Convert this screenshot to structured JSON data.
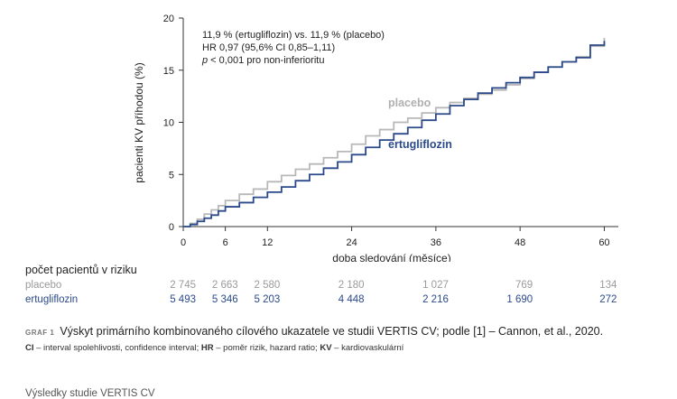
{
  "chart_data": {
    "type": "line",
    "xlabel": "doba sledování (měsíce)",
    "ylabel": "pacienti KV příhodou (%)",
    "xlim": [
      0,
      62
    ],
    "ylim": [
      0,
      20
    ],
    "xticks": [
      0,
      6,
      12,
      24,
      36,
      48,
      60
    ],
    "yticks": [
      0,
      5,
      10,
      15,
      20
    ],
    "annotations": {
      "line1": "11,9 % (ertugliflozin) vs. 11,9 % (placebo)",
      "line2": "HR 0,97 (95,6% CI 0,85–1,11)",
      "line3_italic": "p",
      "line3_rest": " < 0,001 pro non-inferioritu"
    },
    "series": [
      {
        "name": "placebo",
        "color": "#b8b8b8",
        "x": [
          0,
          1,
          2,
          3,
          4,
          5,
          6,
          8,
          10,
          12,
          14,
          16,
          18,
          20,
          22,
          24,
          26,
          28,
          30,
          32,
          34,
          36,
          38,
          40,
          42,
          44,
          46,
          48,
          50,
          52,
          54,
          56,
          58,
          60
        ],
        "y": [
          0,
          0.3,
          0.7,
          1.2,
          1.6,
          2.0,
          2.5,
          3.1,
          3.6,
          4.3,
          4.9,
          5.5,
          6.0,
          6.6,
          7.2,
          7.9,
          8.7,
          9.3,
          10.0,
          10.4,
          10.9,
          11.4,
          11.9,
          12.3,
          12.7,
          13.1,
          13.6,
          14.2,
          14.8,
          15.3,
          15.8,
          16.3,
          17.3,
          18.1
        ]
      },
      {
        "name": "ertugliflozin",
        "color": "#2b4a8b",
        "x": [
          0,
          1,
          2,
          3,
          4,
          5,
          6,
          8,
          10,
          12,
          14,
          16,
          18,
          20,
          22,
          24,
          26,
          28,
          30,
          32,
          34,
          36,
          38,
          40,
          42,
          44,
          46,
          48,
          50,
          52,
          54,
          56,
          58,
          60
        ],
        "y": [
          0,
          0.2,
          0.5,
          0.8,
          1.1,
          1.5,
          1.9,
          2.3,
          2.8,
          3.3,
          3.8,
          4.4,
          5.0,
          5.6,
          6.2,
          6.9,
          7.6,
          8.3,
          8.9,
          9.5,
          10.2,
          10.8,
          11.6,
          12.2,
          12.8,
          13.3,
          13.8,
          14.3,
          14.8,
          15.3,
          15.8,
          16.2,
          17.4,
          17.8
        ]
      }
    ],
    "series_labels": {
      "placebo": "placebo",
      "ertugliflozin": "ertugliflozin"
    }
  },
  "risk_table": {
    "title": "počet pacientů v riziku",
    "rows": [
      {
        "label": "placebo",
        "values": [
          "2 745",
          "2 663",
          "2 580",
          "2 180",
          "1 027",
          "769",
          "134"
        ]
      },
      {
        "label": "ertugliflozin",
        "values": [
          "5 493",
          "5 346",
          "5 203",
          "4 448",
          "2 216",
          "1 690",
          "272"
        ]
      }
    ]
  },
  "caption": {
    "label": "GRAF 1",
    "text": "Výskyt primárního kombinovaného cílového ukazatele ve studii VERTIS CV; podle [1] – Cannon, et al., 2020."
  },
  "footnote": {
    "ci_abbr": "CI",
    "ci_text": " – interval spolehlivosti, confidence interval; ",
    "hr_abbr": "HR",
    "hr_text": " – poměr rizik, hazard ratio; ",
    "kv_abbr": "KV",
    "kv_text": " – kardiovaskulární"
  },
  "next_section": "Výsledky studie VERTIS CV"
}
